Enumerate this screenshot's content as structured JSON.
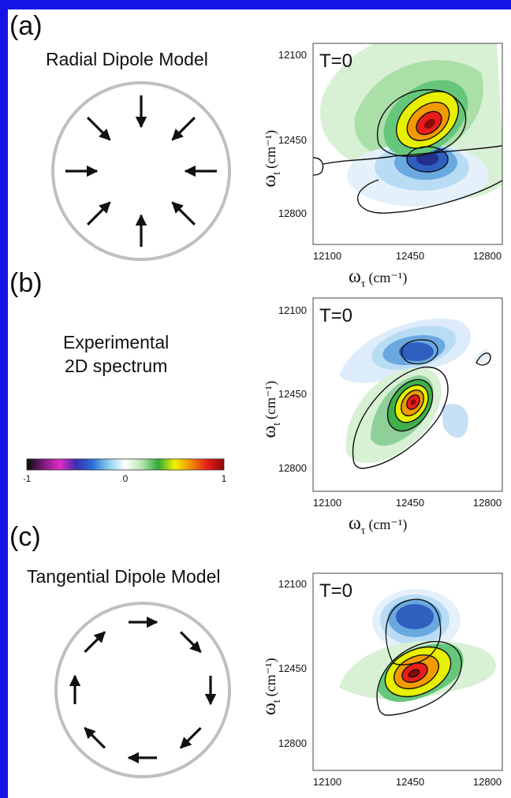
{
  "panels": [
    {
      "letter": "(a)",
      "title": "Radial Dipole Model",
      "spectrum_label": "T=0"
    },
    {
      "letter": "(b)",
      "title_line1": "Experimental",
      "title_line2": "2D spectrum",
      "spectrum_label": "T=0"
    },
    {
      "letter": "(c)",
      "title": "Tangential Dipole Model",
      "spectrum_label": "T=0"
    }
  ],
  "axes": {
    "ticks": [
      "12100",
      "12450",
      "12800"
    ],
    "x_label": "ω",
    "x_sub": "τ",
    "x_unit": "(cm⁻¹)",
    "y_label": "ω",
    "y_sub": "t",
    "y_unit": "(cm⁻¹)"
  },
  "colorbar": {
    "ticks": [
      "-1",
      "0",
      "1"
    ],
    "colors": [
      "#0a0a0a",
      "#7a1a7a",
      "#e02cc0",
      "#3b2fb0",
      "#2a6fd6",
      "#8fd0f0",
      "#ffffff",
      "#b8e6b0",
      "#2faa3a",
      "#f2f200",
      "#f28a00",
      "#e81c1c",
      "#8a0a0a"
    ]
  },
  "colors": {
    "border": "#1414e6",
    "circle": "#bfbfbf",
    "arrow": "#111111",
    "contour": "#111111"
  }
}
